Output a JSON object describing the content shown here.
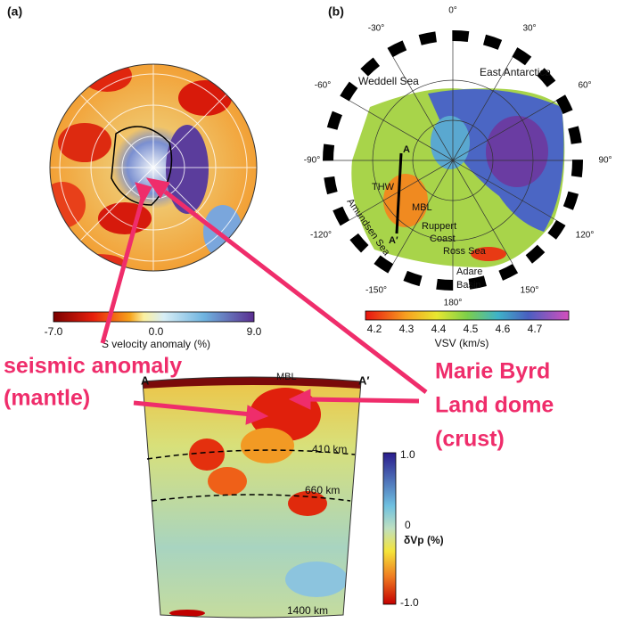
{
  "panel_a": {
    "label": "(a)",
    "colorbar": {
      "ticks": [
        "-7.0",
        "0.0",
        "9.0"
      ],
      "title": "S velocity anomaly (%)"
    }
  },
  "panel_b": {
    "label": "(b)",
    "places": [
      "Weddell Sea",
      "East Antarctica",
      "THW",
      "A",
      "A′",
      "MBL",
      "Ruppert",
      "Coast",
      "Amundsen Sea",
      "Ross Sea",
      "Adare",
      "Basin"
    ],
    "degrees": [
      "0°",
      "30°",
      "60°",
      "90°",
      "120°",
      "150°",
      "180°",
      "-150°",
      "-120°",
      "-90°",
      "-60°",
      "-30°"
    ],
    "colorbar": {
      "ticks": [
        "4.2",
        "4.3",
        "4.4",
        "4.5",
        "4.6",
        "4.7"
      ],
      "title": "VSV (km/s)"
    }
  },
  "section": {
    "left": "A",
    "right": "A′",
    "top": "MBL",
    "depths": [
      "410 km",
      "660 km",
      "1400 km"
    ],
    "colorbar": {
      "ticks": [
        "1.0",
        "0",
        "-1.0"
      ],
      "title": "δVp (%)"
    }
  },
  "annotations": {
    "mantle": [
      "seismic anomaly",
      "(mantle)"
    ],
    "crust": [
      "Marie Byrd",
      "Land dome",
      "(crust)"
    ]
  }
}
